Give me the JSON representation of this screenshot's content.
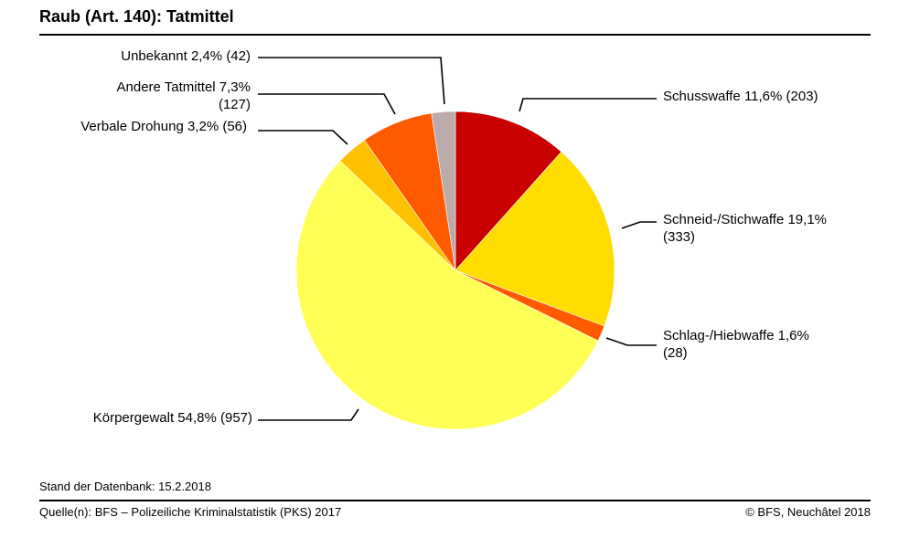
{
  "header": {
    "title": "Raub (Art. 140): Tatmittel"
  },
  "footer": {
    "stand": "Stand der Datenbank: 15.2.2018",
    "source": "Quelle(n): BFS – Polizeiliche Kriminalstatistik (PKS) 2017",
    "copyright": "© BFS, Neuchâtel 2018"
  },
  "chart_data": {
    "type": "pie",
    "title": "Raub (Art. 140): Tatmittel",
    "slices": [
      {
        "name": "Schusswaffe",
        "percent": 11.6,
        "count": 203,
        "color": "#c80000",
        "label_lines": [
          "Schusswaffe 11,6% (203)"
        ]
      },
      {
        "name": "Schneid-/Stichwaffe",
        "percent": 19.1,
        "count": 333,
        "color": "#ffdd00",
        "label_lines": [
          "Schneid-/Stichwaffe 19,1%",
          "(333)"
        ]
      },
      {
        "name": "Schlag-/Hiebwaffe",
        "percent": 1.6,
        "count": 28,
        "color": "#ff5a00",
        "label_lines": [
          "Schlag-/Hiebwaffe 1,6%",
          "(28)"
        ]
      },
      {
        "name": "Körpergewalt",
        "percent": 54.8,
        "count": 957,
        "color": "#ffff55",
        "label_lines": [
          "Körpergewalt 54,8% (957)"
        ]
      },
      {
        "name": "Verbale Drohung",
        "percent": 3.2,
        "count": 56,
        "color": "#ffc000",
        "label_lines": [
          "Verbale Drohung 3,2% (56)"
        ]
      },
      {
        "name": "Andere Tatmittel",
        "percent": 7.3,
        "count": 127,
        "color": "#ff5a00",
        "label_lines": [
          "Andere Tatmittel 7,3%",
          "(127)"
        ]
      },
      {
        "name": "Unbekannt",
        "percent": 2.4,
        "count": 42,
        "color": "#bbaaaa",
        "label_lines": [
          "Unbekannt 2,4% (42)"
        ]
      }
    ],
    "legend": "none",
    "labels_placement": "outside-with-leader-lines"
  }
}
